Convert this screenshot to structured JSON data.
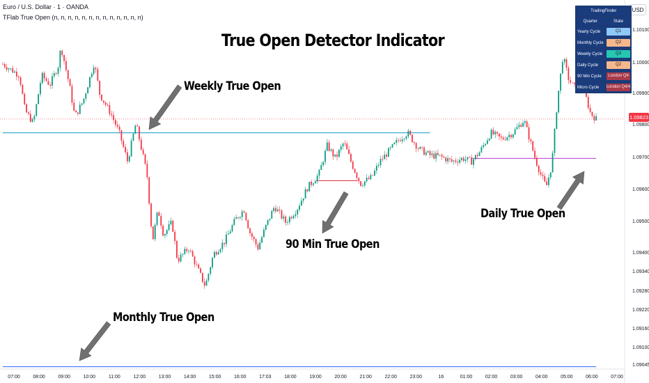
{
  "header": {
    "symbol": "Euro / U.S. Dollar · 1 · OANDA",
    "indicator": "TFlab True Open (n, n, n, n, n, n, n, n, n, n, n, n, n)",
    "currency": "USD"
  },
  "annotations": {
    "weekly": "Weekly True Open",
    "monthly": "Monthly True Open",
    "min90": "90 Min True Open",
    "daily": "Daily True Open"
  },
  "state_table": {
    "title": "TradingFinder",
    "col1": "Quarter",
    "col2": "State",
    "rows": [
      {
        "label": "Yearly Cycle",
        "state": "Q1",
        "color": "#90c8f8"
      },
      {
        "label": "Monthly Cycle",
        "state": "Q2",
        "color": "#f6b78c"
      },
      {
        "label": "Weekly Cycle",
        "state": "Q3",
        "color": "#26c6b0"
      },
      {
        "label": "Daily Cycle",
        "state": "Q2",
        "color": "#f6b78c"
      },
      {
        "label": "90 Min Cycle",
        "state": "London Q4",
        "color": "#a83a4a"
      },
      {
        "label": "Micro Cycle",
        "state": "London Q4/4",
        "color": "#a83a4a"
      }
    ]
  },
  "chart_data": {
    "type": "line",
    "title": "True Open Detector Indicator",
    "symbol": "EURUSD",
    "timeframe": "1",
    "current_price": "1.09823",
    "y_ticks": [
      "1.10100",
      "1.10000",
      "1.09900",
      "1.09800",
      "1.09700",
      "1.09600",
      "1.09500",
      "1.09400",
      "1.09340",
      "1.09280",
      "1.09220",
      "1.09160",
      "1.09100",
      "1.09045"
    ],
    "x_ticks": [
      "07:00",
      "08:00",
      "09:00",
      "10:00",
      "11:00",
      "12:00",
      "13:00",
      "14:00",
      "15:00",
      "16:00",
      "17:03",
      "18:00",
      "19:00",
      "20:00",
      "21:00",
      "22:00",
      "23:00",
      "16",
      "01:00",
      "02:00",
      "03:00",
      "04:00",
      "05:00",
      "06:00",
      "07:00"
    ],
    "price_path": [
      {
        "t": 0.0,
        "p": 1.09995
      },
      {
        "t": 0.6,
        "p": 1.0996
      },
      {
        "t": 0.8,
        "p": 1.0985
      },
      {
        "t": 1.1,
        "p": 1.0981
      },
      {
        "t": 1.4,
        "p": 1.0996
      },
      {
        "t": 1.7,
        "p": 1.0993
      },
      {
        "t": 2.0,
        "p": 1.0999
      },
      {
        "t": 2.1,
        "p": 1.1005
      },
      {
        "t": 2.4,
        "p": 1.0993
      },
      {
        "t": 2.6,
        "p": 1.0983
      },
      {
        "t": 2.9,
        "p": 1.0988
      },
      {
        "t": 3.1,
        "p": 1.0994
      },
      {
        "t": 3.3,
        "p": 1.1
      },
      {
        "t": 3.5,
        "p": 1.099
      },
      {
        "t": 3.9,
        "p": 1.0984
      },
      {
        "t": 4.2,
        "p": 1.0978
      },
      {
        "t": 4.5,
        "p": 1.0969
      },
      {
        "t": 4.8,
        "p": 1.0981
      },
      {
        "t": 5.0,
        "p": 1.0973
      },
      {
        "t": 5.2,
        "p": 1.0965
      },
      {
        "t": 5.4,
        "p": 1.0944
      },
      {
        "t": 5.6,
        "p": 1.0954
      },
      {
        "t": 5.8,
        "p": 1.0946
      },
      {
        "t": 6.1,
        "p": 1.095
      },
      {
        "t": 6.3,
        "p": 1.0938
      },
      {
        "t": 6.7,
        "p": 1.0942
      },
      {
        "t": 7.0,
        "p": 1.0936
      },
      {
        "t": 7.3,
        "p": 1.093
      },
      {
        "t": 7.6,
        "p": 1.094
      },
      {
        "t": 8.0,
        "p": 1.0944
      },
      {
        "t": 8.4,
        "p": 1.0951
      },
      {
        "t": 8.7,
        "p": 1.0954
      },
      {
        "t": 8.9,
        "p": 1.0947
      },
      {
        "t": 9.2,
        "p": 1.0942
      },
      {
        "t": 9.5,
        "p": 1.0949
      },
      {
        "t": 9.8,
        "p": 1.0955
      },
      {
        "t": 10.2,
        "p": 1.095
      },
      {
        "t": 10.6,
        "p": 1.0954
      },
      {
        "t": 11.0,
        "p": 1.0961
      },
      {
        "t": 11.4,
        "p": 1.0965
      },
      {
        "t": 11.7,
        "p": 1.0974
      },
      {
        "t": 12.0,
        "p": 1.097
      },
      {
        "t": 12.3,
        "p": 1.0975
      },
      {
        "t": 12.6,
        "p": 1.0968
      },
      {
        "t": 12.9,
        "p": 1.0962
      },
      {
        "t": 13.3,
        "p": 1.0964
      },
      {
        "t": 13.6,
        "p": 1.0969
      },
      {
        "t": 13.9,
        "p": 1.0972
      },
      {
        "t": 14.3,
        "p": 1.0976
      },
      {
        "t": 14.6,
        "p": 1.0978
      },
      {
        "t": 15.0,
        "p": 1.0973
      },
      {
        "t": 15.4,
        "p": 1.0971
      },
      {
        "t": 15.8,
        "p": 1.09705
      },
      {
        "t": 16.2,
        "p": 1.0969
      },
      {
        "t": 16.6,
        "p": 1.097
      },
      {
        "t": 16.9,
        "p": 1.0969
      },
      {
        "t": 17.2,
        "p": 1.0972
      },
      {
        "t": 17.6,
        "p": 1.0978
      },
      {
        "t": 18.0,
        "p": 1.0976
      },
      {
        "t": 18.4,
        "p": 1.0978
      },
      {
        "t": 18.8,
        "p": 1.0982
      },
      {
        "t": 19.0,
        "p": 1.0976
      },
      {
        "t": 19.2,
        "p": 1.097
      },
      {
        "t": 19.4,
        "p": 1.0965
      },
      {
        "t": 19.6,
        "p": 1.0961
      },
      {
        "t": 19.8,
        "p": 1.0968
      },
      {
        "t": 20.0,
        "p": 1.0988
      },
      {
        "t": 20.2,
        "p": 1.1002
      },
      {
        "t": 20.4,
        "p": 1.0995
      },
      {
        "t": 20.6,
        "p": 1.0992
      },
      {
        "t": 20.8,
        "p": 1.0996
      },
      {
        "t": 21.0,
        "p": 1.099
      },
      {
        "t": 21.2,
        "p": 1.0984
      },
      {
        "t": 21.4,
        "p": 1.09823
      }
    ],
    "levels": [
      {
        "name": "Weekly True Open",
        "price": 1.0978,
        "color": "#22a6c8",
        "from": 0.0,
        "to": 15.4
      },
      {
        "name": "Monthly True Open",
        "price": 1.09048,
        "color": "#2962ff",
        "from": 0.0,
        "to": 21.4
      },
      {
        "name": "Daily True Open",
        "price": 1.097,
        "color": "#b53bcc",
        "from": 16.9,
        "to": 21.4
      },
      {
        "name": "90 Min True Open",
        "price": 1.0963,
        "color": "#e0303a",
        "from": 11.3,
        "to": 12.8
      }
    ],
    "y_range": [
      1.09045,
      1.1013
    ],
    "x_range": [
      0.0,
      22.0
    ],
    "grid": false
  }
}
